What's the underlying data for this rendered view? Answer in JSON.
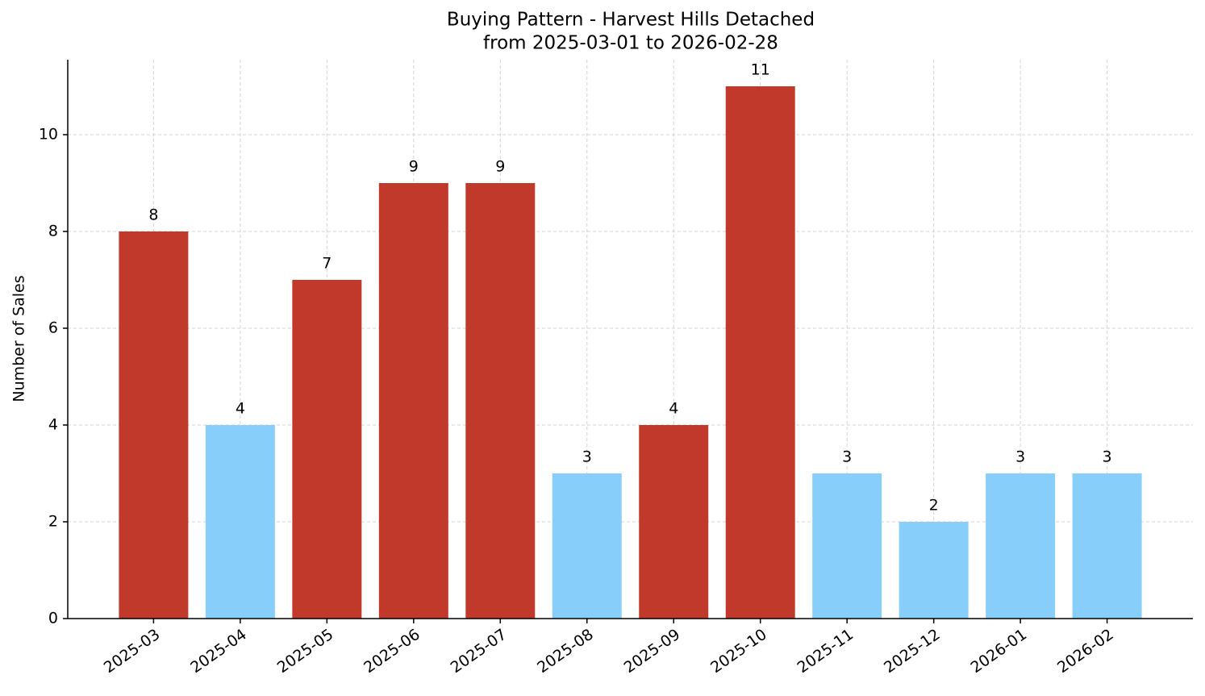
{
  "chart_data": {
    "type": "bar",
    "title": "Buying Pattern - Harvest Hills Detached",
    "subtitle": "from 2025-03-01 to 2026-02-28",
    "y_label": "Number of Sales",
    "categories": [
      "2025-03",
      "2025-04",
      "2025-05",
      "2025-06",
      "2025-07",
      "2025-08",
      "2025-09",
      "2025-10",
      "2025-11",
      "2025-12",
      "2026-01",
      "2026-02"
    ],
    "values": [
      8,
      4,
      7,
      9,
      9,
      3,
      4,
      11,
      3,
      2,
      3,
      3
    ],
    "colors": [
      "#c0392b",
      "#87cefa",
      "#c0392b",
      "#c0392b",
      "#c0392b",
      "#87cefa",
      "#c0392b",
      "#c0392b",
      "#87cefa",
      "#87cefa",
      "#87cefa",
      "#87cefa"
    ],
    "ylim": [
      0,
      11.55
    ],
    "yticks": [
      0,
      2,
      4,
      6,
      8,
      10
    ],
    "grid": true
  }
}
